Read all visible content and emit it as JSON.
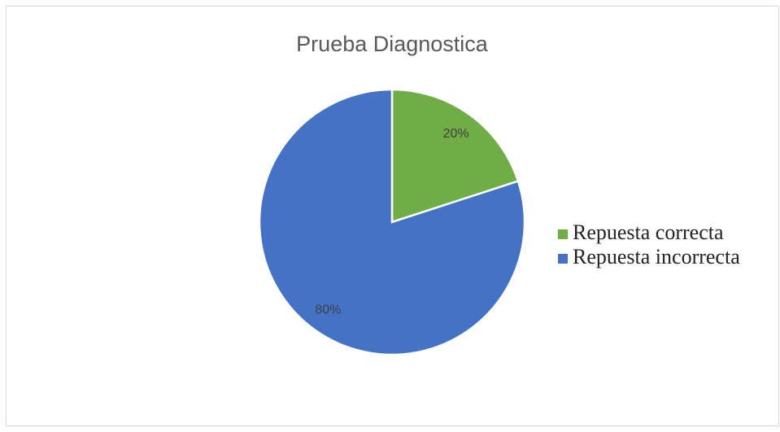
{
  "chart_data": {
    "type": "pie",
    "title": "Prueba Diagnostica",
    "categories": [
      "Repuesta correcta",
      "Repuesta incorrecta"
    ],
    "values": [
      20,
      80
    ],
    "value_labels": [
      "20%",
      "80%"
    ],
    "colors": [
      "#70ad47",
      "#4472c4"
    ],
    "legend": "right"
  }
}
